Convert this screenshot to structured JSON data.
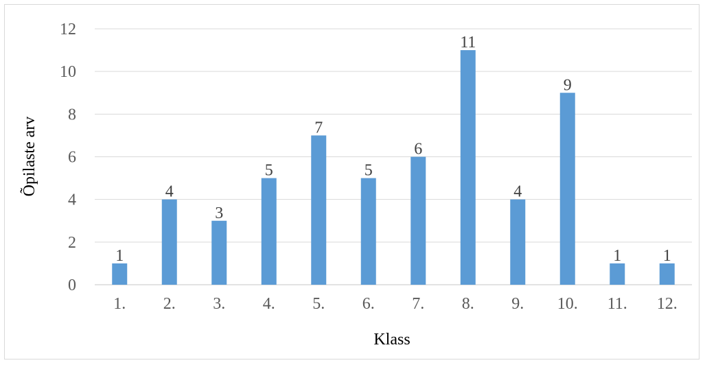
{
  "chart_data": {
    "type": "bar",
    "categories": [
      "1.",
      "2.",
      "3.",
      "4.",
      "5.",
      "6.",
      "7.",
      "8.",
      "9.",
      "10.",
      "11.",
      "12."
    ],
    "values": [
      1,
      4,
      3,
      5,
      7,
      5,
      6,
      11,
      4,
      9,
      1,
      1
    ],
    "xlabel": "Klass",
    "ylabel": "Õpilaste arv",
    "ylim": [
      0,
      12
    ],
    "yticks": [
      0,
      2,
      4,
      6,
      8,
      10,
      12
    ],
    "grid": true,
    "legend": "none",
    "bar_color": "#5b9bd5",
    "data_labels": true
  }
}
